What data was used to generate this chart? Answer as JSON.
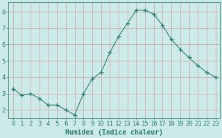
{
  "x": [
    0,
    1,
    2,
    3,
    4,
    5,
    6,
    7,
    8,
    9,
    10,
    11,
    12,
    13,
    14,
    15,
    16,
    17,
    18,
    19,
    20,
    21,
    22,
    23
  ],
  "y": [
    3.3,
    2.9,
    3.0,
    2.7,
    2.3,
    2.3,
    2.0,
    1.7,
    3.0,
    3.9,
    4.3,
    5.5,
    6.5,
    7.3,
    8.1,
    8.1,
    7.85,
    7.15,
    6.3,
    5.7,
    5.2,
    4.7,
    4.3,
    4.0
  ],
  "line_color": "#2e7d6e",
  "marker": "+",
  "marker_size": 4,
  "marker_lw": 1.0,
  "bg_color": "#cceae7",
  "grid_color_major": "#c8a0a0",
  "grid_color_minor": "#b8d8d5",
  "xlabel": "Humidex (Indice chaleur)",
  "xlim": [
    -0.5,
    23.5
  ],
  "ylim": [
    1.5,
    8.6
  ],
  "yticks": [
    2,
    3,
    4,
    5,
    6,
    7,
    8
  ],
  "xticks": [
    0,
    1,
    2,
    3,
    4,
    5,
    6,
    7,
    8,
    9,
    10,
    11,
    12,
    13,
    14,
    15,
    16,
    17,
    18,
    19,
    20,
    21,
    22,
    23
  ],
  "tick_color": "#2e7d6e",
  "label_color": "#2e7d6e",
  "font_size_label": 7,
  "font_size_tick": 6.5
}
